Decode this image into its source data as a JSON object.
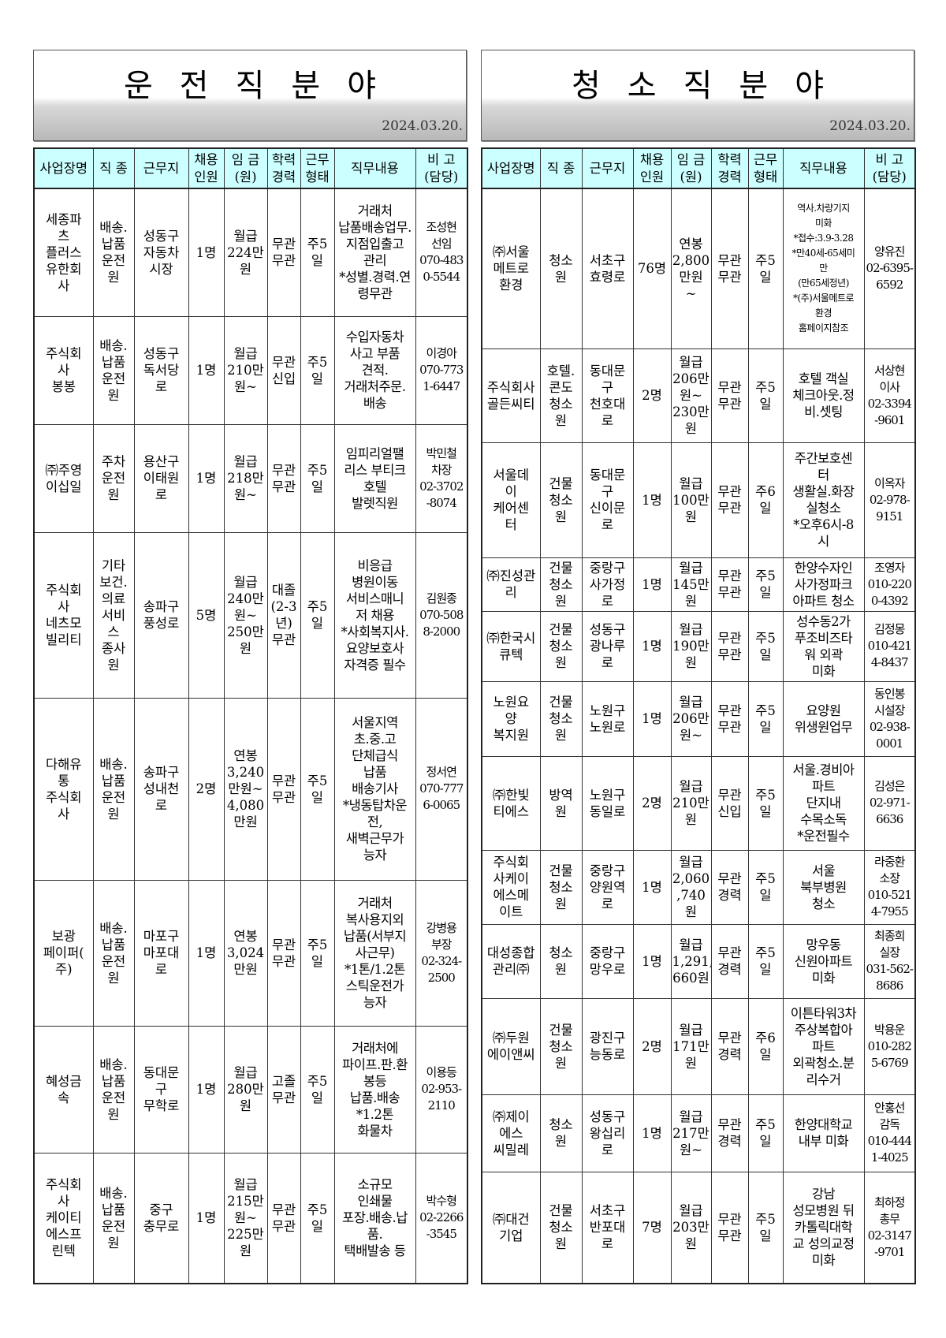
{
  "headers": [
    "사업장명",
    "직 종",
    "근무지",
    "채용\n인원",
    "임 금\n(원)",
    "학력\n경력",
    "근무\n형태",
    "직무내용",
    "비 고\n(담당)"
  ],
  "left": {
    "title": "운전직분야",
    "date": "2024.03.20.",
    "rows": [
      [
        "세종파\n츠\n플러스\n유한회\n사",
        "배송.\n납품\n운전\n원",
        "성동구\n자동차\n시장",
        "1명",
        "월급\n224만\n원",
        "무관\n무관",
        "주5일",
        "거래처\n납품배송업무.\n지점입출고\n관리\n*성별.경력.연\n령무관",
        "조성현\n선임\n070-483\n0-5544"
      ],
      [
        "주식회\n사\n봉봉",
        "배송.\n납품\n운전\n원",
        "성동구\n독서당\n로",
        "1명",
        "월급\n210만\n원~",
        "무관\n신입",
        "주5일",
        "수입자동차\n사고 부품\n견적.\n거래처주문.\n배송",
        "이경아\n070-773\n1-6447"
      ],
      [
        "㈜주영\n이십일",
        "주차\n운전\n원",
        "용산구\n이태원\n로",
        "1명",
        "월급\n218만\n원~",
        "무관\n무관",
        "주5일",
        "임피리얼팰\n리스 부티크\n호텔\n발렛직원",
        "박민철\n차장\n02-3702\n-8074"
      ],
      [
        "주식회\n사\n네츠모\n빌리티",
        "기타\n보건.\n의료\n서비\n스\n종사\n원",
        "송파구\n풍성로",
        "5명",
        "월급\n240만\n원~\n250만\n원",
        "대졸\n(2-3\n년)\n무관",
        "주5일",
        "비응급\n병원이동\n서비스매니\n저 채용\n*사회복지사.\n요양보호사\n자격증 필수",
        "김원종\n070-508\n8-2000"
      ],
      [
        "다해유\n통\n주식회\n사",
        "배송.\n납품\n운전\n원",
        "송파구\n성내천\n로",
        "2명",
        "연봉\n3,240\n만원~\n4,080\n만원",
        "무관\n무관",
        "주5일",
        "서울지역\n초.중.고\n단체급식\n납품\n배송기사\n*냉동탑차운\n전,\n새벽근무가\n능자",
        "정서연\n070-777\n6-0065"
      ],
      [
        "보광\n페이퍼(\n주)",
        "배송.\n납품\n운전\n원",
        "마포구\n마포대\n로",
        "1명",
        "연봉\n3,024\n만원",
        "무관\n무관",
        "주5일",
        "거래처\n복사용지외\n납품(서부지\n사근무)\n*1톤/1.2톤\n스틱운전가\n능자",
        "강병용\n부장\n02-324-\n2500"
      ],
      [
        "혜성금\n속",
        "배송.\n납품\n운전\n원",
        "동대문\n구\n무학로",
        "1명",
        "월급\n280만\n원",
        "고졸\n무관",
        "주5일",
        "거래처에\n파이프.판.환\n봉등\n납품.배송\n*1.2톤\n화물차",
        "이용등\n02-953-\n2110"
      ],
      [
        "주식회\n사\n케이티\n에스프\n린텍",
        "배송.\n납품\n운전\n원",
        "중구\n충무로",
        "1명",
        "월급\n215만\n원~\n225만\n원",
        "무관\n무관",
        "주5일",
        "소규모\n인쇄물\n포장.배송.납\n품.\n택배발송 등",
        "박수형\n02-2266\n-3545"
      ]
    ]
  },
  "right": {
    "title": "청소직분야",
    "date": "2024.03.20.",
    "rows": [
      [
        "㈜서울\n메트로\n환경",
        "청소\n원",
        "서초구\n효령로",
        "76명",
        "연봉\n2,800\n만원\n~",
        "무관\n무관",
        "주5\n일",
        "역사.차량기지\n미화\n*접수:3.9-3.28\n*만40세-65세미\n만\n(만65세정년)\n*(주)서울메트로\n환경\n홈페이지참조",
        "양유진\n02-6395-\n6592"
      ],
      [
        "주식회사\n골든씨티",
        "호텔.\n콘도\n청소\n원",
        "동대문\n구\n천호대\n로",
        "2명",
        "월급\n206만\n원~\n230만\n원",
        "무관\n무관",
        "주5\n일",
        "호텔 객실\n체크아웃.정\n비.셋팅",
        "서상현\n이사\n02-3394\n-9601"
      ],
      [
        "서울데\n이\n케어센\n터",
        "건물\n청소\n원",
        "동대문\n구\n신이문\n로",
        "1명",
        "월급\n100만\n원",
        "무관\n무관",
        "주6\n일",
        "주간보호센\n터\n생활실.화장\n실청소\n*오후6시-8\n시",
        "이옥자\n02-978-\n9151"
      ],
      [
        "㈜진성관\n리",
        "건물\n청소\n원",
        "중랑구\n사가정\n로",
        "1명",
        "월급\n145만\n원",
        "무관\n무관",
        "주5\n일",
        "한양수자인\n사가정파크\n아파트 청소",
        "조영자\n010-220\n0-4392"
      ],
      [
        "㈜한국시\n큐텍",
        "건물\n청소\n원",
        "성동구\n광나루\n로",
        "1명",
        "월급\n190만\n원",
        "무관\n무관",
        "주5\n일",
        "성수동2가\n푸조비즈타\n워 외곽\n미화",
        "김정몽\n010-421\n4-8437"
      ],
      [
        "노원요\n양\n복지원",
        "건물\n청소\n원",
        "노원구\n노원로",
        "1명",
        "월급\n206만\n원~",
        "무관\n무관",
        "주5\n일",
        "요양원\n위생원업무",
        "동인봉\n시설장\n02-938-\n0001"
      ],
      [
        "㈜한빛\n티에스",
        "방역\n원",
        "노원구\n동일로",
        "2명",
        "월급\n210만\n원",
        "무관\n신입",
        "주5\n일",
        "서울.경비아\n파트\n단지내\n수목소독\n*운전필수",
        "김성은\n02-971-\n6636"
      ],
      [
        "주식회\n사케이\n에스메\n이트",
        "건물\n청소\n원",
        "중랑구\n양원역\n로",
        "1명",
        "월급\n2,060\n,740\n원",
        "무관\n경력",
        "주5\n일",
        "서울\n북부병원\n청소",
        "라중환\n소장\n010-521\n4-7955"
      ],
      [
        "대성종합\n관리㈜",
        "청소\n원",
        "중랑구\n망우로",
        "1명",
        "월급\n1,291,\n660원",
        "무관\n경력",
        "주5\n일",
        "망우동\n신원아파트\n미화",
        "최종희\n실장\n031-562-\n8686"
      ],
      [
        "㈜두원\n에이앤씨",
        "건물\n청소\n원",
        "광진구\n능동로",
        "2명",
        "월급\n171만\n원",
        "무관\n경력",
        "주6\n일",
        "이튼타워3차\n주상복합아\n파트\n외곽청소.분\n리수거",
        "박용운\n010-282\n5-6769"
      ],
      [
        "㈜제이\n에스\n씨밀레",
        "청소\n원",
        "성동구\n왕십리\n로",
        "1명",
        "월급\n217만\n원~",
        "무관\n경력",
        "주5\n일",
        "한양대학교\n내부 미화",
        "안홍선\n감독\n010-444\n1-4025"
      ],
      [
        "㈜대건\n기업",
        "건물\n청소\n원",
        "서초구\n반포대\n로",
        "7명",
        "월급\n203만\n원",
        "무관\n무관",
        "주5\n일",
        "강남\n성모병원 뒤\n카톨릭대학\n교 성의교정\n미화",
        "최하정\n총무\n02-3147\n-9701"
      ]
    ]
  }
}
